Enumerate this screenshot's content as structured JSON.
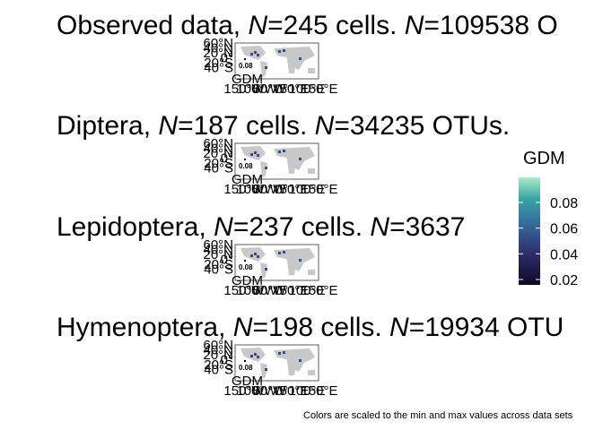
{
  "panels": [
    {
      "title": [
        "Observed data, ",
        "N",
        "=245 cells. ",
        "N",
        "=109538 O"
      ]
    },
    {
      "title": [
        "Diptera, ",
        "N",
        "=187 cells. ",
        "N",
        "=34235 OTUs."
      ]
    },
    {
      "title": [
        "Lepidoptera, ",
        "N",
        "=237 cells. ",
        "N",
        "=3637"
      ]
    },
    {
      "title": [
        "Hymenoptera, ",
        "N",
        "=198 cells. ",
        "N",
        "=19934 OTU"
      ]
    }
  ],
  "map_axes": {
    "y_labels": [
      "60°N",
      "40°N",
      "20°N",
      "0°",
      "20°S",
      "40°S"
    ],
    "x_labels": [
      "150°W",
      "100°W",
      "50°W",
      "0°",
      "50°E",
      "100°E",
      "150°E"
    ],
    "inset_title": "GDM",
    "inset_label": "0.08"
  },
  "legend": {
    "title": "GDM",
    "range": [
      0.0158,
      0.0995
    ],
    "ticks": [
      0.02,
      0.04,
      0.06,
      0.08
    ]
  },
  "caption": "Colors are scaled to the min and max values across data sets"
}
